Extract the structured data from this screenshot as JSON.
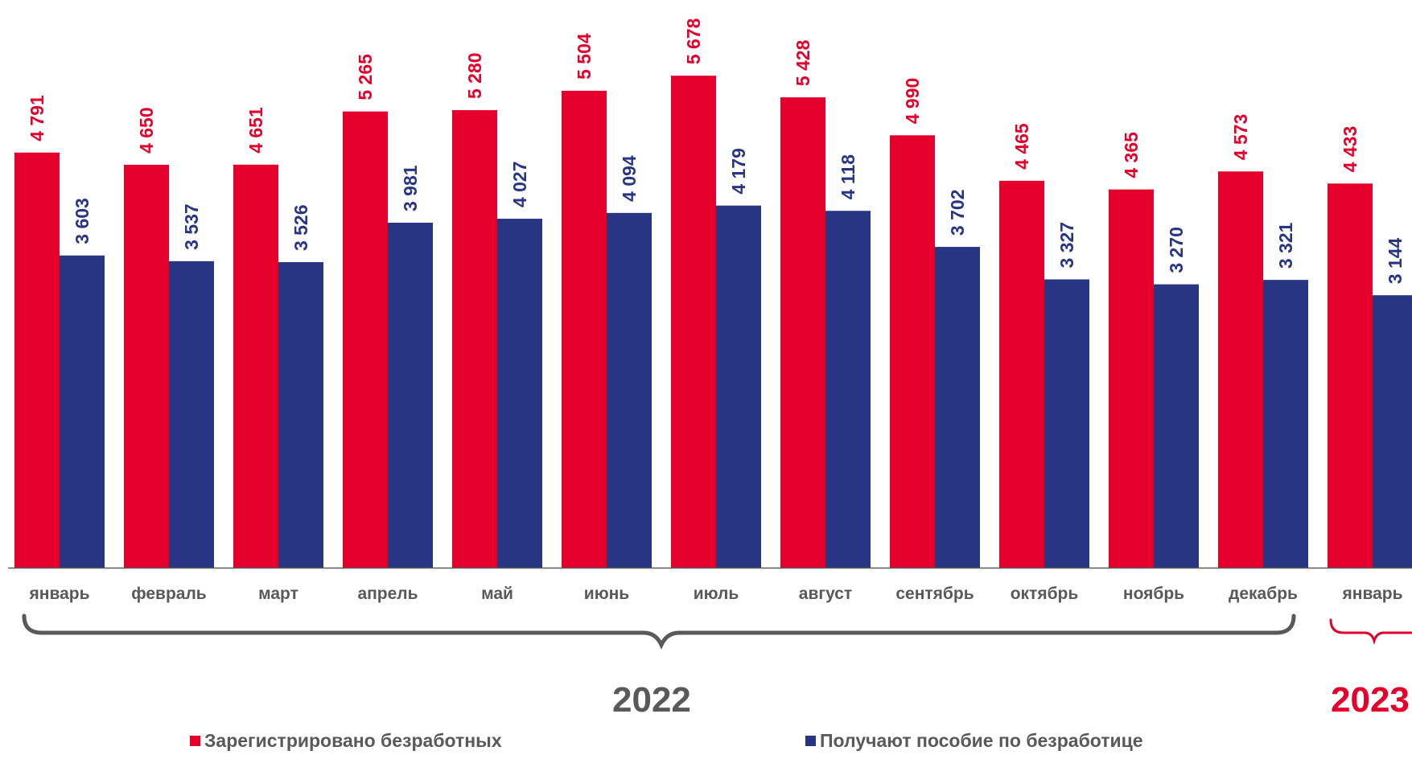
{
  "chart_data": {
    "type": "bar",
    "categories": [
      "январь",
      "февраль",
      "март",
      "апрель",
      "май",
      "июнь",
      "июль",
      "август",
      "сентябрь",
      "октябрь",
      "ноябрь",
      "декабрь",
      "январь"
    ],
    "series": [
      {
        "name": "Зарегистрировано безработных",
        "labels": [
          "4 791",
          "4 650",
          "4 651",
          "5 265",
          "5 280",
          "5 504",
          "5 678",
          "5 428",
          "4 990",
          "4 465",
          "4 365",
          "4 573",
          "4 433"
        ],
        "values": [
          4791,
          4650,
          4651,
          5265,
          5280,
          5504,
          5678,
          5428,
          4990,
          4465,
          4365,
          4573,
          4433
        ],
        "color": "#e4002b"
      },
      {
        "name": "Получают пособие по безработице",
        "labels": [
          "3 603",
          "3 537",
          "3 526",
          "3 981",
          "4 027",
          "4 094",
          "4 179",
          "4 118",
          "3 702",
          "3 327",
          "3 270",
          "3 321",
          "3 144"
        ],
        "values": [
          3603,
          3537,
          3526,
          3981,
          4027,
          4094,
          4179,
          4118,
          3702,
          3327,
          3270,
          3321,
          3144
        ],
        "color": "#283583"
      }
    ],
    "groups": [
      {
        "label": "2022",
        "color": "#595959",
        "brace_color": "#595959"
      },
      {
        "label": "2023",
        "color": "#e4002b",
        "brace_color": "#e4002b"
      }
    ],
    "ylim": [
      0,
      6000
    ],
    "grid": false,
    "legend_position": "bottom",
    "axis_color": "#595959",
    "category_label_color": "#595959"
  }
}
